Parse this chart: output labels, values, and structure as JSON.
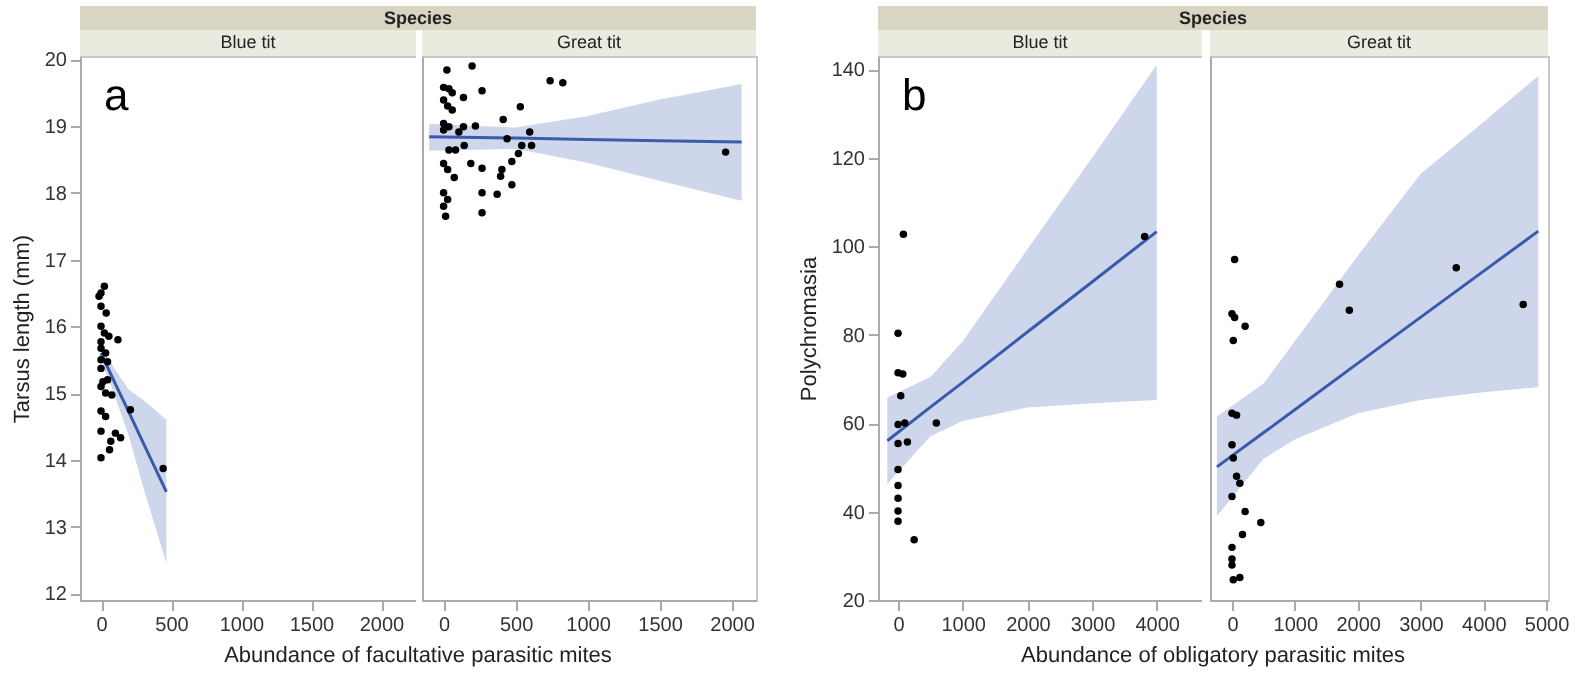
{
  "chart_data": [
    {
      "type": "scatter",
      "title": "Species",
      "subtitle": "Blue tit",
      "xlabel": "Abundance of facultative parasitic mites",
      "ylabel": "Tarsus length (mm)",
      "annotations": [
        "a"
      ],
      "xlim": [
        -150,
        2250
      ],
      "xticks": [
        0,
        500,
        1000,
        1500,
        2000
      ],
      "ylim": [
        11.9,
        20.05
      ],
      "yticks": [
        12,
        13,
        14,
        15,
        16,
        17,
        18,
        19,
        20
      ],
      "grid": false,
      "series": [
        {
          "color": "#000000",
          "x": [
            24,
            0,
            -14,
            0,
            37,
            0,
            24,
            56,
            0,
            121,
            0,
            33,
            0,
            47,
            0,
            14,
            47,
            0,
            33,
            77,
            210,
            0,
            33,
            0,
            103,
            140,
            70,
            61,
            0,
            444
          ],
          "values": [
            16.6,
            16.5,
            16.45,
            16.3,
            16.2,
            16.0,
            15.9,
            15.85,
            15.77,
            15.8,
            15.67,
            15.6,
            15.5,
            15.47,
            15.37,
            15.17,
            15.2,
            15.1,
            15.0,
            14.97,
            14.75,
            14.73,
            14.65,
            14.43,
            14.4,
            14.33,
            14.28,
            14.15,
            14.03,
            13.87
          ]
        },
        {
          "type": "line",
          "color": "#3a5aae",
          "x": [
            0,
            100,
            200,
            300,
            467
          ],
          "values": [
            15.6,
            15.15,
            14.71,
            14.26,
            13.52
          ],
          "lower": [
            15.5,
            14.95,
            14.35,
            13.6,
            12.45
          ],
          "upper": [
            15.7,
            15.35,
            15.05,
            14.9,
            14.6
          ]
        }
      ]
    },
    {
      "type": "scatter",
      "subtitle": "Great tit",
      "xlim": [
        -150,
        2170
      ],
      "xticks": [
        0,
        500,
        1000,
        1500,
        2000
      ],
      "ylim": [
        11.9,
        20.05
      ],
      "tick_labels": "x",
      "grid": false,
      "series": [
        {
          "color": "#000000",
          "x": [
            23,
            198,
            0,
            37,
            60,
            138,
            267,
            740,
            828,
            0,
            28,
            60,
            533,
            0,
            37,
            138,
            221,
            414,
            0,
            106,
            598,
            441,
            37,
            83,
            143,
            543,
            611,
            520,
            0,
            189,
            474,
            28,
            267,
            405,
            74,
            396,
            474,
            0,
            267,
            372,
            28,
            0,
            267,
            14,
            1959
          ],
          "values": [
            19.84,
            19.9,
            19.58,
            19.56,
            19.5,
            19.43,
            19.53,
            19.68,
            19.65,
            19.39,
            19.3,
            19.24,
            19.29,
            19.04,
            18.99,
            18.99,
            19.0,
            19.1,
            18.94,
            18.91,
            18.91,
            18.81,
            18.64,
            18.64,
            18.71,
            18.71,
            18.71,
            18.59,
            18.44,
            18.44,
            18.47,
            18.35,
            18.37,
            18.35,
            18.23,
            18.25,
            18.12,
            18.0,
            18.0,
            17.98,
            17.9,
            17.8,
            17.7,
            17.65,
            18.61
          ]
        },
        {
          "type": "line",
          "color": "#3a5aae",
          "x": [
            -100,
            500,
            1000,
            1500,
            2070
          ],
          "values": [
            18.84,
            18.82,
            18.8,
            18.78,
            18.76
          ],
          "lower": [
            18.63,
            18.66,
            18.45,
            18.18,
            17.88
          ],
          "upper": [
            19.03,
            18.98,
            19.15,
            19.4,
            19.63
          ]
        }
      ]
    },
    {
      "type": "scatter",
      "title": "Species",
      "subtitle": "Blue tit",
      "xlabel": "Abundance of obligatory parasitic mites",
      "ylabel": "Polychromasia",
      "annotations": [
        "b"
      ],
      "xlim": [
        -310,
        4700
      ],
      "xticks": [
        0,
        1000,
        2000,
        3000,
        4000
      ],
      "ylim": [
        20,
        143
      ],
      "yticks": [
        20,
        40,
        60,
        80,
        100,
        120,
        140
      ],
      "grid": false,
      "series": [
        {
          "color": "#000000",
          "x": [
            83,
            0,
            0,
            73,
            42,
            0,
            104,
            592,
            0,
            145,
            0,
            0,
            0,
            0,
            0,
            249,
            3813
          ],
          "values": [
            102.7,
            80.3,
            71.4,
            71.1,
            66.2,
            59.7,
            60.0,
            60.0,
            55.4,
            55.7,
            49.5,
            45.9,
            43.0,
            40.1,
            37.8,
            33.6,
            102.2
          ]
        },
        {
          "type": "line",
          "color": "#3a5aae",
          "x": [
            -166,
            500,
            1000,
            2000,
            3000,
            4000
          ],
          "values": [
            56.0,
            63.6,
            69.2,
            80.6,
            91.9,
            103.3
          ],
          "lower": [
            46.2,
            57.0,
            60.5,
            63.5,
            64.5,
            65.2
          ],
          "upper": [
            65.8,
            70.4,
            78.5,
            99.3,
            120,
            141
          ]
        }
      ]
    },
    {
      "type": "scatter",
      "subtitle": "Great tit",
      "xlim": [
        -350,
        5030
      ],
      "xticks": [
        0,
        1000,
        2000,
        3000,
        4000,
        5000
      ],
      "ylim": [
        20,
        143
      ],
      "tick_labels": "x",
      "grid": false,
      "series": [
        {
          "color": "#000000",
          "x": [
            42,
            0,
            42,
            209,
            21,
            1712,
            1868,
            3570,
            4635,
            0,
            73,
            0,
            21,
            73,
            125,
            0,
            209,
            459,
            167,
            0,
            0,
            0,
            21,
            125
          ],
          "values": [
            97.0,
            84.7,
            83.9,
            81.9,
            78.7,
            91.4,
            85.5,
            95.1,
            86.8,
            62.2,
            61.8,
            55.1,
            52.1,
            48.0,
            46.4,
            43.4,
            40.0,
            37.5,
            34.8,
            31.9,
            29.3,
            27.9,
            24.6,
            25.1
          ]
        },
        {
          "type": "line",
          "color": "#3a5aae",
          "x": [
            -240,
            500,
            1000,
            2000,
            3000,
            4000,
            4875
          ],
          "values": [
            50.1,
            57.8,
            63.0,
            73.5,
            83.9,
            94.3,
            103.4
          ],
          "lower": [
            39.0,
            51.9,
            56.3,
            62.2,
            65.2,
            67.0,
            68.1
          ],
          "upper": [
            61.5,
            68.9,
            78.5,
            97.8,
            116.3,
            128,
            138.5
          ]
        }
      ]
    }
  ]
}
